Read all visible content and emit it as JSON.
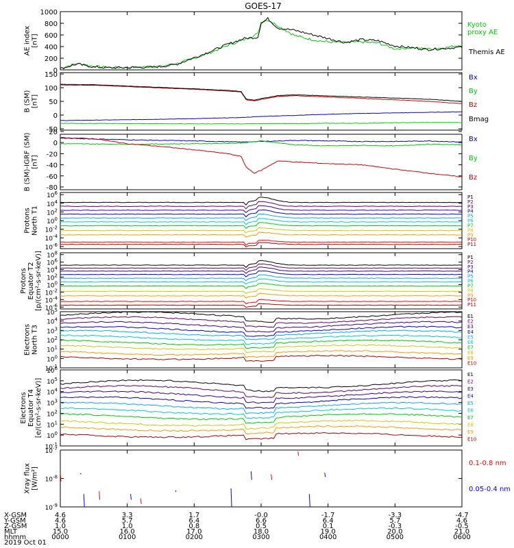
{
  "title": "GOES-17",
  "chart_data": {
    "type": "line",
    "title": "GOES-17",
    "x_time_ticks": [
      "0000",
      "0100",
      "0200",
      "0300",
      "0400",
      "0500",
      "0600"
    ],
    "x_range_hours": [
      0,
      6
    ],
    "panels": [
      {
        "id": "ae",
        "ylabel_lines": [
          "AE index",
          "[nT]"
        ],
        "yticks": [
          "1000",
          "800",
          "600",
          "400",
          "200",
          "0"
        ],
        "ytick_values": [
          1000,
          800,
          600,
          400,
          200,
          0
        ],
        "ylim": [
          0,
          1000
        ],
        "scale": "linear",
        "legend": [
          {
            "text": "Kyoto",
            "color": "#00cc00"
          },
          {
            "text": "proxy AE",
            "color": "#00cc00"
          },
          {
            "text": "Themis AE",
            "color": "#000000"
          }
        ],
        "series": [
          {
            "name": "Kyoto proxy AE",
            "color": "#00cc00",
            "x": [
              0,
              0.25,
              0.5,
              0.75,
              1.0,
              1.25,
              1.5,
              1.75,
              2.0,
              2.25,
              2.5,
              2.75,
              2.95,
              3.0,
              3.1,
              3.25,
              3.5,
              3.75,
              4.0,
              4.25,
              4.5,
              4.75,
              5.0,
              5.25,
              5.5,
              5.75,
              6.0
            ],
            "values": [
              30,
              110,
              60,
              40,
              40,
              50,
              60,
              110,
              200,
              300,
              420,
              520,
              620,
              820,
              860,
              760,
              590,
              520,
              480,
              470,
              480,
              460,
              360,
              380,
              360,
              380,
              430
            ]
          },
          {
            "name": "Themis AE",
            "color": "#000000",
            "x": [
              0,
              0.25,
              0.5,
              0.75,
              1.0,
              1.25,
              1.5,
              1.75,
              2.0,
              2.25,
              2.5,
              2.75,
              2.95,
              3.0,
              3.1,
              3.25,
              3.5,
              3.75,
              4.0,
              4.25,
              4.5,
              4.75,
              5.0,
              5.25,
              5.5,
              5.75,
              6.0
            ],
            "values": [
              20,
              100,
              50,
              35,
              40,
              45,
              55,
              100,
              210,
              320,
              440,
              540,
              560,
              800,
              880,
              720,
              680,
              610,
              540,
              470,
              520,
              500,
              410,
              380,
              350,
              370,
              390
            ]
          }
        ]
      },
      {
        "id": "b_sm",
        "ylabel_lines": [
          "B (SM)",
          "[nT]"
        ],
        "yticks": [
          "150",
          "100",
          "50",
          "0",
          "-50"
        ],
        "ytick_values": [
          150,
          100,
          50,
          0,
          -50
        ],
        "ylim": [
          -55,
          155
        ],
        "scale": "linear",
        "legend": [
          {
            "text": "Bx",
            "color": "#0000cc"
          },
          {
            "text": "By",
            "color": "#00cc00"
          },
          {
            "text": "Bz",
            "color": "#cc0000"
          },
          {
            "text": "Bmag",
            "color": "#000000"
          }
        ],
        "series": [
          {
            "name": "Bx",
            "color": "#0000cc",
            "x": [
              0,
              1,
              2,
              2.7,
              3,
              3.5,
              4,
              4.5,
              5,
              5.5,
              6
            ],
            "values": [
              -20,
              -17,
              -13,
              -9,
              -5,
              -1,
              3,
              6,
              8,
              10,
              12
            ]
          },
          {
            "name": "By",
            "color": "#00cc00",
            "x": [
              0,
              1,
              2,
              2.7,
              3,
              3.5,
              4,
              4.5,
              5,
              5.5,
              6
            ],
            "values": [
              -30,
              -31,
              -32,
              -32,
              -31,
              -31,
              -30,
              -30,
              -28,
              -27,
              -27
            ]
          },
          {
            "name": "Bz",
            "color": "#cc0000",
            "x": [
              0,
              0.5,
              1,
              1.5,
              2,
              2.5,
              2.7,
              2.78,
              2.9,
              3.0,
              3.25,
              3.5,
              4,
              4.5,
              5,
              5.5,
              6
            ],
            "values": [
              110,
              109,
              104,
              99,
              94,
              88,
              84,
              55,
              52,
              57,
              68,
              71,
              66,
              61,
              56,
              50,
              42
            ]
          },
          {
            "name": "Bmag",
            "color": "#000000",
            "x": [
              0,
              0.5,
              1,
              1.5,
              2,
              2.5,
              2.7,
              2.78,
              2.9,
              3.0,
              3.25,
              3.5,
              4,
              4.5,
              5,
              5.5,
              6
            ],
            "values": [
              112,
              111,
              106,
              101,
              96,
              90,
              86,
              58,
              55,
              60,
              71,
              74,
              70,
              66,
              62,
              58,
              50
            ]
          }
        ]
      },
      {
        "id": "b_sm_igrf",
        "ylabel_lines": [
          "B (SM)-IGRF (SM)",
          "[nT]"
        ],
        "yticks": [
          "20",
          "0",
          "-20",
          "-40",
          "-60",
          "-80"
        ],
        "ytick_values": [
          20,
          0,
          -20,
          -40,
          -60,
          -80
        ],
        "ylim": [
          -85,
          15
        ],
        "scale": "linear",
        "legend": [
          {
            "text": "Bx",
            "color": "#0000cc"
          },
          {
            "text": "By",
            "color": "#00cc00"
          },
          {
            "text": "Bz",
            "color": "#cc0000"
          }
        ],
        "series": [
          {
            "name": "Bx",
            "color": "#0000cc",
            "x": [
              0,
              1,
              2,
              2.7,
              3,
              3.5,
              4,
              4.5,
              5,
              5.5,
              6
            ],
            "values": [
              8,
              5,
              3,
              1,
              2,
              4,
              3,
              2,
              2,
              3,
              1
            ]
          },
          {
            "name": "By",
            "color": "#00cc00",
            "x": [
              0,
              1,
              2,
              2.7,
              3,
              3.5,
              4,
              4.5,
              5,
              5.5,
              6
            ],
            "values": [
              -2,
              -3,
              -2,
              -1,
              3,
              -4,
              -6,
              -5,
              -6,
              -3,
              -4
            ]
          },
          {
            "name": "Bz",
            "color": "#cc0000",
            "x": [
              0,
              0.5,
              1,
              1.5,
              2,
              2.5,
              2.7,
              2.78,
              2.9,
              3.0,
              3.25,
              3.5,
              4,
              4.5,
              5,
              5.5,
              6
            ],
            "values": [
              9,
              7,
              -2,
              -7,
              -13,
              -20,
              -25,
              -45,
              -55,
              -50,
              -33,
              -35,
              -38,
              -40,
              -48,
              -55,
              -62
            ]
          }
        ]
      },
      {
        "id": "protons_t1",
        "ylabel_lines": [
          "Protons",
          "North T1"
        ],
        "yticks": [
          "10^6",
          "10^4",
          "10^2",
          "10^0",
          "10^-2",
          "10^-4",
          "10^-6"
        ],
        "ytick_values": [
          6,
          4,
          2,
          0,
          -2,
          -4,
          -6
        ],
        "ylim": [
          -6.5,
          6.5
        ],
        "scale": "log",
        "legend_names": [
          "P1",
          "P2",
          "P3",
          "P4",
          "P5",
          "P6",
          "P7",
          "P8",
          "P9",
          "P10",
          "P11"
        ],
        "legend_colors": [
          "#000000",
          "#660066",
          "#330099",
          "#0000cc",
          "#00aaff",
          "#00cccc",
          "#00cc00",
          "#cccc00",
          "#ff9900",
          "#ff0000",
          "#aa0000"
        ],
        "channel_log_levels": [
          4.2,
          3.3,
          2.4,
          1.5,
          0.6,
          -0.3,
          -1.2,
          -2.3,
          -3.3,
          -5,
          -5.5
        ]
      },
      {
        "id": "protons_t2",
        "ylabel_lines": [
          "Protons",
          "Equator T2",
          "[p/(cm²-s-sr-keV)]"
        ],
        "yticks": [
          "10^8",
          "10^6",
          "10^4",
          "10^2",
          "10^0",
          "10^-2",
          "10^-4",
          "10^-6"
        ],
        "ytick_values": [
          8,
          6,
          4,
          2,
          0,
          -2,
          -4,
          -6
        ],
        "ylim": [
          -6.5,
          8.5
        ],
        "scale": "log",
        "legend_names": [
          "P1",
          "P2",
          "P3",
          "P4",
          "P5",
          "P6",
          "P7",
          "P8",
          "P9",
          "P10",
          "P11"
        ],
        "legend_colors": [
          "#000000",
          "#660066",
          "#330099",
          "#0000cc",
          "#00aaff",
          "#00cccc",
          "#00cc00",
          "#cccc00",
          "#ff9900",
          "#ff0000",
          "#aa0000"
        ],
        "channel_log_levels": [
          5.2,
          4.4,
          3.6,
          2.7,
          1.7,
          0.7,
          -0.4,
          -1.8,
          -3,
          -4.5,
          -5.5
        ]
      },
      {
        "id": "electrons_t3",
        "ylabel_lines": [
          "Electrons",
          "North T3"
        ],
        "yticks": [
          "10^5",
          "10^4",
          "10^3",
          "10^2",
          "10^1",
          "10^0",
          "10^-1"
        ],
        "ytick_values": [
          5,
          4,
          3,
          2,
          1,
          0,
          -1
        ],
        "ylim": [
          -1,
          5
        ],
        "scale": "log",
        "legend_names": [
          "E1",
          "E2",
          "E3",
          "E4",
          "E5",
          "E6",
          "E7",
          "E8",
          "E9",
          "E10"
        ],
        "legend_colors": [
          "#000000",
          "#660066",
          "#330099",
          "#0000cc",
          "#00aaff",
          "#00cccc",
          "#00cc00",
          "#cccc00",
          "#ff9900",
          "#aa0000"
        ],
        "channel_log_levels": [
          4.6,
          4.1,
          3.6,
          3.1,
          2.7,
          2.2,
          1.7,
          1.2,
          0.6,
          0.1
        ]
      },
      {
        "id": "electrons_t4",
        "ylabel_lines": [
          "Electrons",
          "Equator T4",
          "[e/(cm²-s-sr-keV)]"
        ],
        "yticks": [
          "10^6",
          "10^5",
          "10^4",
          "10^3",
          "10^2",
          "10^1",
          "10^0",
          "10^-1"
        ],
        "ytick_values": [
          6,
          5,
          4,
          3,
          2,
          1,
          0,
          -1
        ],
        "ylim": [
          -1,
          6
        ],
        "scale": "log",
        "legend_names": [
          "E1",
          "E2",
          "E3",
          "E4",
          "E5",
          "E6",
          "E7",
          "E8",
          "E9",
          "E10"
        ],
        "legend_colors": [
          "#000000",
          "#660066",
          "#330099",
          "#0000cc",
          "#00aaff",
          "#00cccc",
          "#00cc00",
          "#cccc00",
          "#ff9900",
          "#aa0000"
        ],
        "channel_log_levels": [
          4.7,
          4.2,
          3.7,
          3.2,
          2.7,
          2.2,
          1.7,
          1.1,
          0.6,
          0.0
        ]
      },
      {
        "id": "xray",
        "ylabel_lines": [
          "Xray flux",
          "[W/m²]"
        ],
        "yticks": [
          "10^-7",
          "10^-8",
          "10^-9"
        ],
        "ytick_values": [
          -7,
          -8,
          -9
        ],
        "ylim": [
          -9,
          -7
        ],
        "scale": "log",
        "legend": [
          {
            "text": "0.1-0.8 nm",
            "color": "#ff0000"
          },
          {
            "text": "0.05-0.4 nm",
            "color": "#0000ff"
          }
        ],
        "segments_long": [
          [
            0.0,
            -7.82,
            -8.1
          ],
          [
            0.35,
            -8.55,
            -9
          ],
          [
            0.58,
            -8.45,
            -8.75
          ],
          [
            1.2,
            -8.7,
            -8.9
          ],
          [
            2.85,
            -7.75,
            -8.05
          ],
          [
            3.55,
            -7.05,
            -7.2
          ],
          [
            3.15,
            -7.85,
            -8.05
          ],
          [
            3.95,
            -7.8,
            -7.95
          ]
        ],
        "segments_short": [
          [
            0.3,
            -7.82,
            -7.85
          ],
          [
            1.05,
            -8.55,
            -8.75
          ],
          [
            1.72,
            -8.42,
            -8.47
          ],
          [
            2.55,
            -8.35,
            -9
          ],
          [
            3.72,
            -8.55,
            -9
          ]
        ]
      }
    ]
  },
  "ephemeris": {
    "labels": [
      "X-GSM",
      "Y-GSM",
      "Z-GSM",
      "MLT",
      "hhmm",
      "2019 Oct 01"
    ],
    "columns": [
      {
        "xgsm": "4.6",
        "ygsm": "4.6",
        "zgsm": "1.0",
        "mlt": "15.0",
        "hhmm": "0000"
      },
      {
        "xgsm": "3.3",
        "ygsm": "5.7",
        "zgsm": "1.0",
        "mlt": "16.0",
        "hhmm": "0100"
      },
      {
        "xgsm": "1.7",
        "ygsm": "6.4",
        "zgsm": "0.8",
        "mlt": "17.0",
        "hhmm": "0200"
      },
      {
        "xgsm": "-0.0",
        "ygsm": "6.6",
        "zgsm": "0.5",
        "mlt": "18.0",
        "hhmm": "0300"
      },
      {
        "xgsm": "-1.7",
        "ygsm": "6.4",
        "zgsm": "0.1",
        "mlt": "19.0",
        "hhmm": "0400"
      },
      {
        "xgsm": "-3.3",
        "ygsm": "5.7",
        "zgsm": "-0.3",
        "mlt": "20.0",
        "hhmm": "0500"
      },
      {
        "xgsm": "-4.7",
        "ygsm": "4.6",
        "zgsm": "-0.5",
        "mlt": "21.0",
        "hhmm": "0600"
      }
    ]
  }
}
